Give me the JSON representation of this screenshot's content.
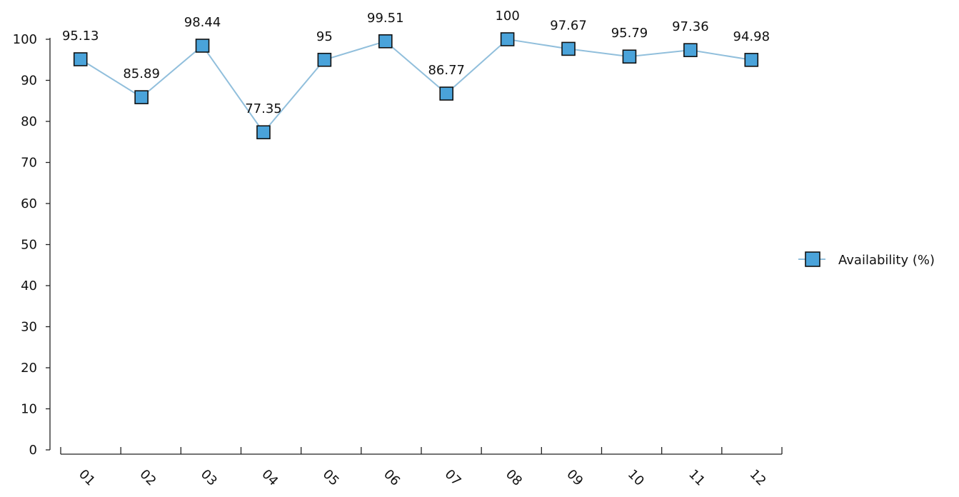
{
  "chart_data": {
    "type": "line",
    "title": "",
    "xlabel": "",
    "ylabel": "",
    "categories": [
      "01",
      "02",
      "03",
      "04",
      "05",
      "06",
      "07",
      "08",
      "09",
      "10",
      "11",
      "12"
    ],
    "series": [
      {
        "name": "Availability (%)",
        "values": [
          95.13,
          85.89,
          98.44,
          77.35,
          95,
          99.51,
          86.77,
          100,
          97.67,
          95.79,
          97.36,
          94.98
        ],
        "data_labels": [
          "95.13",
          "85.89",
          "98.44",
          "77.35",
          "95",
          "99.51",
          "86.77",
          "100",
          "97.67",
          "95.79",
          "97.36",
          "94.98"
        ],
        "line_color": "#91bfdc",
        "marker_fill": "#4aa3da",
        "marker_stroke": "#111111",
        "marker": "square"
      }
    ],
    "yticks": [
      0,
      10,
      20,
      30,
      40,
      50,
      60,
      70,
      80,
      90,
      100
    ],
    "ytick_labels": [
      "0",
      "10",
      "20",
      "30",
      "40",
      "50",
      "60",
      "70",
      "80",
      "90",
      "100"
    ],
    "ylim": [
      0,
      100
    ],
    "x_tick_label_rotation": "slanted",
    "grid": false,
    "legend": {
      "position": "right",
      "entries": [
        "Availability (%)"
      ]
    }
  }
}
